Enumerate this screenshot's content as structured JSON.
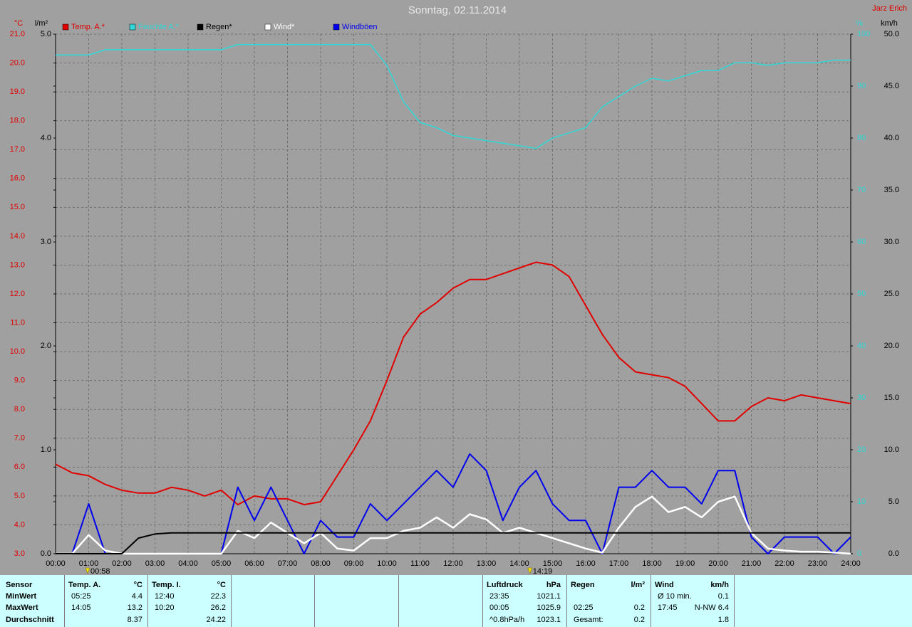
{
  "chart_data": {
    "type": "line",
    "title": "Sonntag, 02.11.2014",
    "author": "Jarz Erich",
    "y_label": "°C",
    "y2_label": "l/m²",
    "y3_label": "%",
    "y4_label": "km/h",
    "xlim": [
      0,
      24
    ],
    "xticks": [
      {
        "value": 0,
        "label": "00:00"
      },
      {
        "value": 1,
        "label": "01:00"
      },
      {
        "value": 2,
        "label": "02:00"
      },
      {
        "value": 3,
        "label": "03:00"
      },
      {
        "value": 4,
        "label": "04:00"
      },
      {
        "value": 5,
        "label": "05:00"
      },
      {
        "value": 6,
        "label": "06:00"
      },
      {
        "value": 7,
        "label": "07:00"
      },
      {
        "value": 8,
        "label": "08:00"
      },
      {
        "value": 9,
        "label": "09:00"
      },
      {
        "value": 10,
        "label": "10:00"
      },
      {
        "value": 11,
        "label": "11:00"
      },
      {
        "value": 12,
        "label": "12:00"
      },
      {
        "value": 13,
        "label": "13:00"
      },
      {
        "value": 14,
        "label": "14:00"
      },
      {
        "value": 15,
        "label": "15:00"
      },
      {
        "value": 16,
        "label": "16:00"
      },
      {
        "value": 17,
        "label": "17:00"
      },
      {
        "value": 18,
        "label": "18:00"
      },
      {
        "value": 19,
        "label": "19:00"
      },
      {
        "value": 20,
        "label": "20:00"
      },
      {
        "value": 21,
        "label": "21:00"
      },
      {
        "value": 22,
        "label": "22:00"
      },
      {
        "value": 23,
        "label": "23:00"
      },
      {
        "value": 24,
        "label": "24:00"
      }
    ],
    "ylim": [
      3,
      21
    ],
    "yticks": [
      {
        "value": 3,
        "label": "3.0"
      },
      {
        "value": 4,
        "label": "4.0"
      },
      {
        "value": 5,
        "label": "5.0"
      },
      {
        "value": 6,
        "label": "6.0"
      },
      {
        "value": 7,
        "label": "7.0"
      },
      {
        "value": 8,
        "label": "8.0"
      },
      {
        "value": 9,
        "label": "9.0"
      },
      {
        "value": 10,
        "label": "10.0"
      },
      {
        "value": 11,
        "label": "11.0"
      },
      {
        "value": 12,
        "label": "12.0"
      },
      {
        "value": 13,
        "label": "13.0"
      },
      {
        "value": 14,
        "label": "14.0"
      },
      {
        "value": 15,
        "label": "15.0"
      },
      {
        "value": 16,
        "label": "16.0"
      },
      {
        "value": 17,
        "label": "17.0"
      },
      {
        "value": 18,
        "label": "18.0"
      },
      {
        "value": 19,
        "label": "19.0"
      },
      {
        "value": 20,
        "label": "20.0"
      },
      {
        "value": 21,
        "label": "21.0"
      }
    ],
    "y2lim": [
      0,
      5
    ],
    "y2ticks": [
      {
        "value": 0,
        "label": "0.0"
      },
      {
        "value": 1,
        "label": "1.0"
      },
      {
        "value": 2,
        "label": "2.0"
      },
      {
        "value": 3,
        "label": "3.0"
      },
      {
        "value": 4,
        "label": "4.0"
      },
      {
        "value": 5,
        "label": "5.0"
      }
    ],
    "y3lim": [
      0,
      100
    ],
    "y3ticks": [
      0,
      10,
      20,
      30,
      40,
      50,
      60,
      70,
      80,
      90,
      100
    ],
    "y4lim": [
      0,
      50
    ],
    "y4ticks": [
      {
        "value": 0,
        "label": "0.0"
      },
      {
        "value": 5,
        "label": "5.0"
      },
      {
        "value": 10,
        "label": "10.0"
      },
      {
        "value": 15,
        "label": "15.0"
      },
      {
        "value": 20,
        "label": "20.0"
      },
      {
        "value": 25,
        "label": "25.0"
      },
      {
        "value": 30,
        "label": "30.0"
      },
      {
        "value": 35,
        "label": "35.0"
      },
      {
        "value": 40,
        "label": "40.0"
      },
      {
        "value": 45,
        "label": "45.0"
      },
      {
        "value": 50,
        "label": "50.0"
      }
    ],
    "grid": true,
    "x": [
      0,
      0.5,
      1,
      1.5,
      2,
      2.5,
      3,
      3.5,
      4,
      4.5,
      5,
      5.5,
      6,
      6.5,
      7,
      7.5,
      8,
      8.5,
      9,
      9.5,
      10,
      10.5,
      11,
      11.5,
      12,
      12.5,
      13,
      13.5,
      14,
      14.5,
      15,
      15.5,
      16,
      16.5,
      17,
      17.5,
      18,
      18.5,
      19,
      19.5,
      20,
      20.5,
      21,
      21.5,
      22,
      22.5,
      23,
      23.5,
      24
    ],
    "series": [
      {
        "name": "Temp. A.*",
        "color": "#e00000",
        "axis": "y",
        "width": 2,
        "values": [
          6.1,
          5.8,
          5.7,
          5.4,
          5.2,
          5.1,
          5.1,
          5.3,
          5.2,
          5.0,
          5.2,
          4.7,
          5.0,
          4.9,
          4.9,
          4.7,
          4.8,
          5.7,
          6.6,
          7.6,
          9.0,
          10.5,
          11.3,
          11.7,
          12.2,
          12.5,
          12.5,
          12.7,
          12.9,
          13.1,
          13.0,
          12.6,
          11.6,
          10.6,
          9.8,
          9.3,
          9.2,
          9.1,
          8.8,
          8.2,
          7.6,
          7.6,
          8.1,
          8.4,
          8.3,
          8.5,
          8.4,
          8.3,
          8.2
        ]
      },
      {
        "name": "Feuchte A.*",
        "color": "#30d8d8",
        "axis": "y3",
        "width": 1.5,
        "values": [
          96,
          96,
          96,
          97,
          97,
          97,
          97,
          97,
          97,
          97,
          97,
          98,
          98,
          98,
          98,
          98,
          98,
          98,
          98,
          98,
          94,
          87,
          83,
          82,
          80.5,
          80,
          79.5,
          79,
          78.5,
          78,
          80,
          81,
          82,
          86,
          88,
          90,
          91.5,
          91,
          92,
          93,
          93,
          94.5,
          94.5,
          94,
          94.5,
          94.5,
          94.5,
          95,
          95
        ]
      },
      {
        "name": "Regen*",
        "color": "#000000",
        "axis": "y2",
        "width": 2,
        "values": [
          0,
          0,
          0,
          0,
          0,
          0.15,
          0.19,
          0.2,
          0.2,
          0.2,
          0.2,
          0.2,
          0.2,
          0.2,
          0.2,
          0.2,
          0.2,
          0.2,
          0.2,
          0.2,
          0.2,
          0.2,
          0.2,
          0.2,
          0.2,
          0.2,
          0.2,
          0.2,
          0.2,
          0.2,
          0.2,
          0.2,
          0.2,
          0.2,
          0.2,
          0.2,
          0.2,
          0.2,
          0.2,
          0.2,
          0.2,
          0.2,
          0.2,
          0.2,
          0.2,
          0.2,
          0.2,
          0.2,
          0.2
        ]
      },
      {
        "name": "Wind*",
        "color": "#ffffff",
        "axis": "y4",
        "width": 2.5,
        "values": [
          0,
          0,
          1.8,
          0.3,
          0,
          0,
          0,
          0,
          0,
          0,
          0,
          2.2,
          1.5,
          3.0,
          2.0,
          1.0,
          2.0,
          0.5,
          0.3,
          1.5,
          1.5,
          2.2,
          2.5,
          3.5,
          2.5,
          3.8,
          3.3,
          2.0,
          2.5,
          2.0,
          1.5,
          1.0,
          0.5,
          0.1,
          2.5,
          4.5,
          5.5,
          4.0,
          4.5,
          3.5,
          5.0,
          5.5,
          2.0,
          0.5,
          0.3,
          0.2,
          0.2,
          0.1,
          0
        ]
      },
      {
        "name": "Windböen",
        "color": "#0000ee",
        "axis": "y4",
        "width": 2,
        "values": [
          0,
          0,
          4.8,
          0,
          0,
          0,
          0,
          0,
          0,
          0,
          0,
          6.4,
          3.2,
          6.4,
          3.2,
          0,
          3.2,
          1.6,
          1.6,
          4.8,
          3.2,
          4.8,
          6.4,
          8.0,
          6.4,
          9.6,
          8.0,
          3.2,
          6.4,
          8.0,
          4.8,
          3.2,
          3.2,
          0,
          6.4,
          6.4,
          8.0,
          6.4,
          6.4,
          4.8,
          8.0,
          8.0,
          1.6,
          0,
          1.6,
          1.6,
          1.6,
          0,
          1.6
        ]
      }
    ],
    "annotations": [
      {
        "label": "00:58",
        "x": 0.967
      },
      {
        "label": "14:19",
        "x": 14.317
      }
    ]
  },
  "stats": {
    "header": "Sensor",
    "row_labels": [
      "MinWert",
      "MaxWert",
      "Durchschnitt"
    ],
    "blocks": [
      {
        "title": "Temp. A.",
        "unit": "°C",
        "rows": [
          [
            "05:25",
            "4.4"
          ],
          [
            "14:05",
            "13.2"
          ],
          [
            null,
            "8.37"
          ]
        ]
      },
      {
        "title": "Temp. I.",
        "unit": "°C",
        "rows": [
          [
            "12:40",
            "22.3"
          ],
          [
            "10:20",
            "26.2"
          ],
          [
            null,
            "24.22"
          ]
        ]
      },
      {
        "title": "Luftdruck",
        "unit": "hPa",
        "rows": [
          [
            "23:35",
            "1021.1"
          ],
          [
            "00:05",
            "1025.9"
          ],
          [
            "^0.8hPa/h",
            "1023.1"
          ]
        ]
      },
      {
        "title": "Regen",
        "unit": "l/m²",
        "rows": [
          [
            null,
            null
          ],
          [
            "02:25",
            "0.2"
          ],
          [
            "Gesamt:",
            "0.2"
          ]
        ]
      },
      {
        "title": "Wind",
        "unit": "km/h",
        "rows": [
          [
            "Ø 10 min.",
            "0.1"
          ],
          [
            "17:45",
            "N-NW 6.4"
          ],
          [
            null,
            "1.8"
          ]
        ]
      }
    ]
  }
}
